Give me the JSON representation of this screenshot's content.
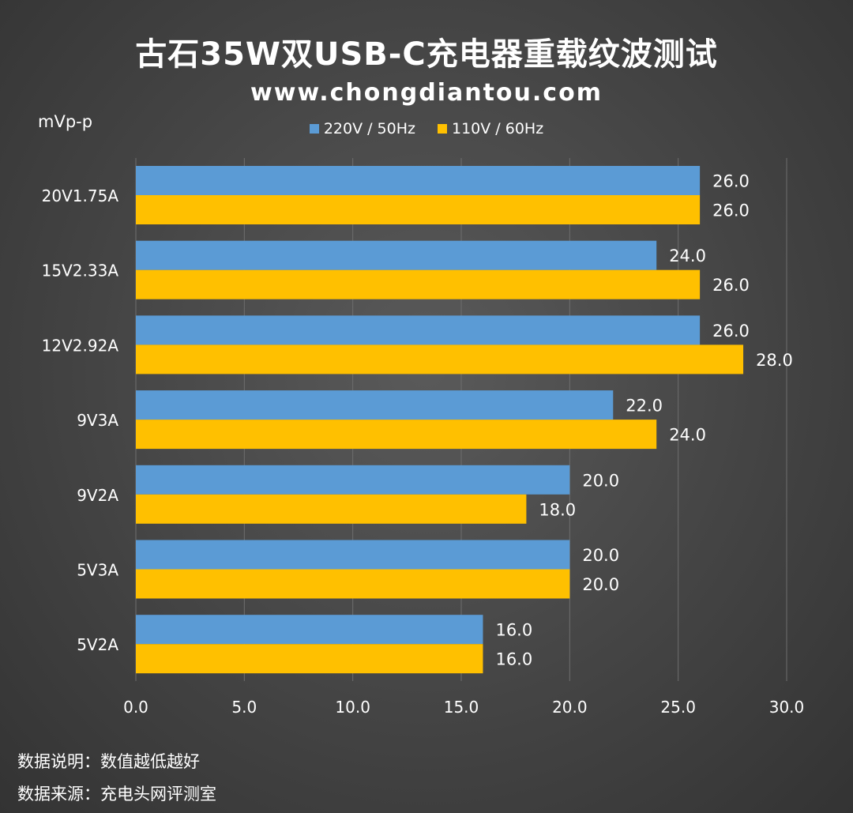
{
  "chart_data": {
    "type": "bar",
    "orientation": "horizontal",
    "title": "古石35W双USB-C充电器重载纹波测试",
    "subtitle": "www.chongdiantou.com",
    "unit_label": "mVp-p",
    "categories": [
      "20V1.75A",
      "15V2.33A",
      "12V2.92A",
      "9V3A",
      "9V2A",
      "5V3A",
      "5V2A"
    ],
    "series": [
      {
        "name": "220V / 50Hz",
        "color": "#5b9bd5",
        "values": [
          26.0,
          24.0,
          26.0,
          22.0,
          20.0,
          20.0,
          16.0
        ]
      },
      {
        "name": "110V / 60Hz",
        "color": "#ffc000",
        "values": [
          26.0,
          26.0,
          28.0,
          24.0,
          18.0,
          20.0,
          16.0
        ]
      }
    ],
    "xlim": [
      0,
      30
    ],
    "xticks": [
      0,
      5,
      10,
      15,
      20,
      25,
      30
    ],
    "xtick_labels": [
      "0.0",
      "5.0",
      "10.0",
      "15.0",
      "20.0",
      "25.0",
      "30.0"
    ],
    "grid": true,
    "legend_position": "top-center"
  },
  "notes": {
    "description": "数据说明：数值越低越好",
    "source": "数据来源：充电头网评测室"
  }
}
